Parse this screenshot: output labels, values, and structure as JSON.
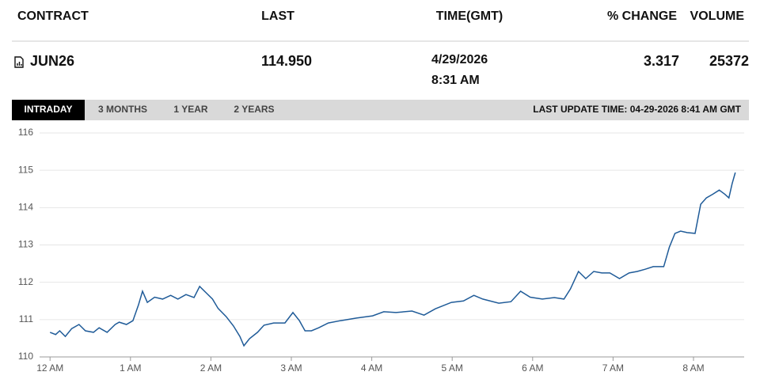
{
  "table": {
    "headers": [
      "CONTRACT",
      "LAST",
      "TIME(GMT)",
      "% CHANGE",
      "VOLUME"
    ],
    "rows": [
      [
        "JUN26",
        "114.950",
        [
          "4/29/2026",
          "8:31 AM"
        ],
        "3.317",
        "25372"
      ]
    ]
  },
  "tabs": [
    "INTRADAY",
    "3 MONTHS",
    "1 YEAR",
    "2 YEARS"
  ],
  "last_update": "LAST UPDATE TIME: 04-29-2026 8:41 AM GMT",
  "chart_data": {
    "type": "line",
    "color": "#1f5b98",
    "grid": true,
    "x": [
      0,
      0.07,
      0.12,
      0.19,
      0.27,
      0.36,
      0.44,
      0.54,
      0.61,
      0.71,
      0.81,
      0.86,
      0.95,
      1.03,
      1.1,
      1.15,
      1.21,
      1.3,
      1.4,
      1.5,
      1.59,
      1.69,
      1.79,
      1.86,
      1.94,
      2.02,
      2.09,
      2.19,
      2.28,
      2.36,
      2.41,
      2.48,
      2.58,
      2.66,
      2.78,
      2.92,
      3.02,
      3.1,
      3.17,
      3.25,
      3.34,
      3.46,
      3.61,
      3.81,
      4.01,
      4.15,
      4.3,
      4.5,
      4.65,
      4.79,
      4.99,
      5.14,
      5.27,
      5.38,
      5.58,
      5.73,
      5.85,
      5.97,
      6.12,
      6.27,
      6.39,
      6.47,
      6.57,
      6.66,
      6.76,
      6.86,
      6.96,
      7.08,
      7.2,
      7.3,
      7.4,
      7.5,
      7.63,
      7.7,
      7.77,
      7.84,
      7.92,
      8.02,
      8.09,
      8.16,
      8.24,
      8.32,
      8.39,
      8.44,
      8.48,
      8.52
    ],
    "values": [
      110.66,
      110.6,
      110.7,
      110.55,
      110.76,
      110.87,
      110.7,
      110.66,
      110.78,
      110.66,
      110.87,
      110.93,
      110.87,
      110.97,
      111.4,
      111.76,
      111.46,
      111.6,
      111.55,
      111.65,
      111.55,
      111.67,
      111.59,
      111.89,
      111.72,
      111.55,
      111.3,
      111.08,
      110.83,
      110.55,
      110.3,
      110.49,
      110.66,
      110.85,
      110.91,
      110.91,
      111.19,
      110.97,
      110.7,
      110.7,
      110.78,
      110.91,
      110.97,
      111.04,
      111.1,
      111.21,
      111.19,
      111.23,
      111.12,
      111.29,
      111.46,
      111.5,
      111.65,
      111.55,
      111.44,
      111.48,
      111.76,
      111.6,
      111.55,
      111.59,
      111.55,
      111.82,
      112.29,
      112.1,
      112.29,
      112.25,
      112.25,
      112.1,
      112.25,
      112.29,
      112.35,
      112.42,
      112.42,
      112.94,
      113.31,
      113.37,
      113.33,
      113.31,
      114.09,
      114.26,
      114.36,
      114.47,
      114.36,
      114.26,
      114.64,
      114.94
    ],
    "xlim": [
      -0.13,
      8.63
    ],
    "ylim": [
      110,
      116
    ],
    "yticks": [
      110,
      111,
      112,
      113,
      114,
      115,
      116
    ],
    "xticks": [
      {
        "value": 0,
        "label": "12 AM"
      },
      {
        "value": 1,
        "label": "1 AM"
      },
      {
        "value": 2,
        "label": "2 AM"
      },
      {
        "value": 3,
        "label": "3 AM"
      },
      {
        "value": 4,
        "label": "4 AM"
      },
      {
        "value": 5,
        "label": "5 AM"
      },
      {
        "value": 6,
        "label": "6 AM"
      },
      {
        "value": 7,
        "label": "7 AM"
      },
      {
        "value": 8,
        "label": "8 AM"
      }
    ]
  }
}
